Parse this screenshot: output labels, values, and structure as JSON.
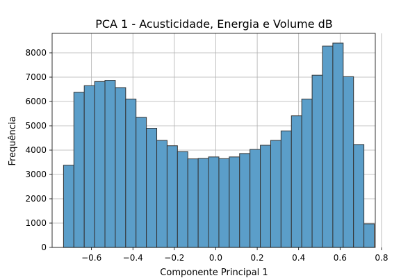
{
  "chart_data": {
    "type": "bar",
    "subtype": "histogram",
    "title": "PCA 1 - Acusticidade, Energia e Volume dB",
    "xlabel": "Componente Principal 1",
    "ylabel": "Frequência",
    "xlim": [
      -0.79,
      0.77
    ],
    "ylim": [
      0,
      8800
    ],
    "grid": true,
    "legend": "none",
    "bar_color": "#5b9ec9",
    "bar_edge_color": "#333333",
    "bin_width": 0.05,
    "bin_start": -0.735,
    "values": [
      3380,
      6380,
      6650,
      6820,
      6870,
      6570,
      6100,
      5350,
      4900,
      4400,
      4180,
      3940,
      3640,
      3660,
      3720,
      3650,
      3720,
      3860,
      4030,
      4200,
      4400,
      4790,
      5410,
      6100,
      7080,
      8280,
      8400,
      7020,
      4230,
      970
    ],
    "x_ticks": [
      {
        "value": -0.6,
        "label": "−0.6"
      },
      {
        "value": -0.4,
        "label": "−0.4"
      },
      {
        "value": -0.2,
        "label": "−0.2"
      },
      {
        "value": 0.0,
        "label": "0.0"
      },
      {
        "value": 0.2,
        "label": "0.2"
      },
      {
        "value": 0.4,
        "label": "0.4"
      },
      {
        "value": 0.6,
        "label": "0.6"
      },
      {
        "value": 0.8,
        "label": "0.8"
      }
    ],
    "y_ticks": [
      {
        "value": 0,
        "label": "0"
      },
      {
        "value": 1000,
        "label": "1000"
      },
      {
        "value": 2000,
        "label": "2000"
      },
      {
        "value": 3000,
        "label": "3000"
      },
      {
        "value": 4000,
        "label": "4000"
      },
      {
        "value": 5000,
        "label": "5000"
      },
      {
        "value": 6000,
        "label": "6000"
      },
      {
        "value": 7000,
        "label": "7000"
      },
      {
        "value": 8000,
        "label": "8000"
      }
    ]
  }
}
